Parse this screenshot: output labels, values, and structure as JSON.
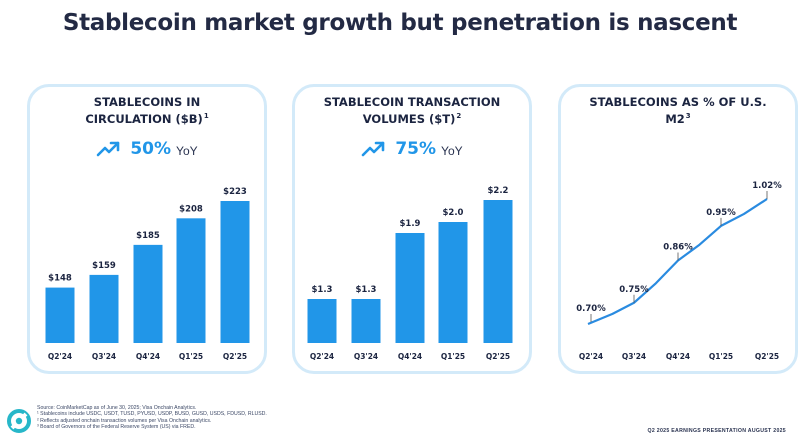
{
  "title": "Stablecoin market growth but penetration is nascent",
  "panels": [
    {
      "title": "STABLECOINS IN CIRCULATION ($B)",
      "footnote_marker": "1",
      "growth_pct": "50%",
      "growth_unit": "YoY"
    },
    {
      "title": "STABLECOIN TRANSACTION VOLUMES ($T)",
      "footnote_marker": "2",
      "growth_pct": "75%",
      "growth_unit": "YoY"
    },
    {
      "title": "STABLECOINS AS % OF U.S. M2",
      "footnote_marker": "3"
    }
  ],
  "chart_data": [
    {
      "type": "bar",
      "title": "STABLECOINS IN CIRCULATION ($B)",
      "categories": [
        "Q2'24",
        "Q3'24",
        "Q4'24",
        "Q1'25",
        "Q2'25"
      ],
      "values": [
        148,
        159,
        185,
        208,
        223
      ],
      "data_labels": [
        "$148",
        "$159",
        "$185",
        "$208",
        "$223"
      ],
      "color": "#2196e8"
    },
    {
      "type": "bar",
      "title": "STABLECOIN TRANSACTION VOLUMES ($T)",
      "categories": [
        "Q2'24",
        "Q3'24",
        "Q4'24",
        "Q1'25",
        "Q2'25"
      ],
      "values": [
        1.3,
        1.3,
        1.9,
        2.0,
        2.2
      ],
      "data_labels": [
        "$1.3",
        "$1.3",
        "$1.9",
        "$2.0",
        "$2.2"
      ],
      "color": "#2196e8"
    },
    {
      "type": "line",
      "title": "STABLECOINS AS % OF U.S. M2",
      "categories": [
        "Q2'24",
        "Q3'24",
        "Q4'24",
        "Q1'25",
        "Q2'25"
      ],
      "values": [
        0.7,
        0.75,
        0.86,
        0.95,
        1.02
      ],
      "data_labels": [
        "0.70%",
        "0.75%",
        "0.86%",
        "0.95%",
        "1.02%"
      ],
      "color": "#2a8be0"
    }
  ],
  "footnotes": {
    "source": "Source: CoinMarketCap as of June 30, 2025; Visa Onchain Analytics.",
    "note1": "¹ Stablecoins include USDC, USDT, TUSD, PYUSD, USDP, BUSD, GUSD, USDS, FDUSD, RLUSD.",
    "note2": "² Reflects adjusted onchain transaction volumes per Visa Onchain analytics.",
    "note3": "³ Board of Governors of the Federal Reserve System (US) via FRED."
  },
  "footer_right": "Q2 2025 EARNINGS PRESENTATION    AUGUST 2025"
}
